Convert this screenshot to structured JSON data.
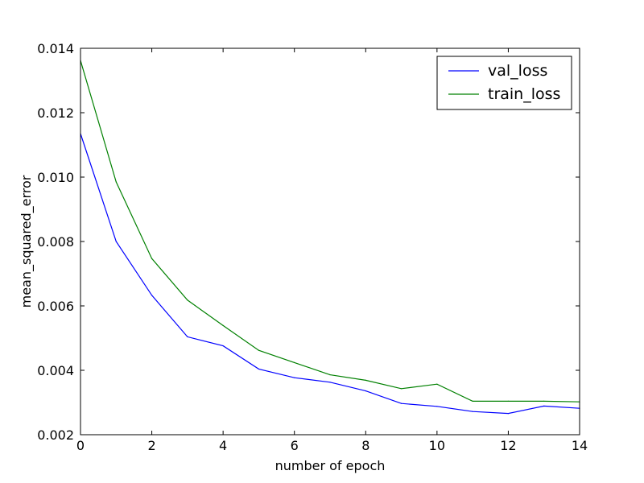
{
  "chart_data": {
    "type": "line",
    "title": "",
    "xlabel": "number of epoch",
    "ylabel": "mean_squared_error",
    "xlim": [
      0,
      14
    ],
    "ylim": [
      0.002,
      0.014
    ],
    "xticks": [
      "0",
      "2",
      "4",
      "6",
      "8",
      "10",
      "12",
      "14"
    ],
    "yticks": [
      "0.002",
      "0.004",
      "0.006",
      "0.008",
      "0.010",
      "0.012",
      "0.014"
    ],
    "xtick_values": [
      0,
      2,
      4,
      6,
      8,
      10,
      12,
      14
    ],
    "ytick_values": [
      0.002,
      0.004,
      0.006,
      0.008,
      0.01,
      0.012,
      0.014
    ],
    "grid": false,
    "legend_position": "top-right",
    "x": [
      0,
      1,
      2,
      3,
      4,
      5,
      6,
      7,
      8,
      9,
      10,
      11,
      12,
      13,
      14
    ],
    "series": [
      {
        "name": "val_loss",
        "color": "#0000ff",
        "values": [
          0.01135,
          0.008,
          0.00633,
          0.00504,
          0.00476,
          0.00404,
          0.00377,
          0.00363,
          0.00336,
          0.00297,
          0.00288,
          0.00272,
          0.00266,
          0.00289,
          0.00282
        ]
      },
      {
        "name": "train_loss",
        "color": "#008000",
        "values": [
          0.01362,
          0.00985,
          0.00747,
          0.00618,
          0.00539,
          0.00462,
          0.00424,
          0.00386,
          0.00369,
          0.00343,
          0.00357,
          0.00304,
          0.00304,
          0.00304,
          0.00302
        ]
      }
    ]
  }
}
